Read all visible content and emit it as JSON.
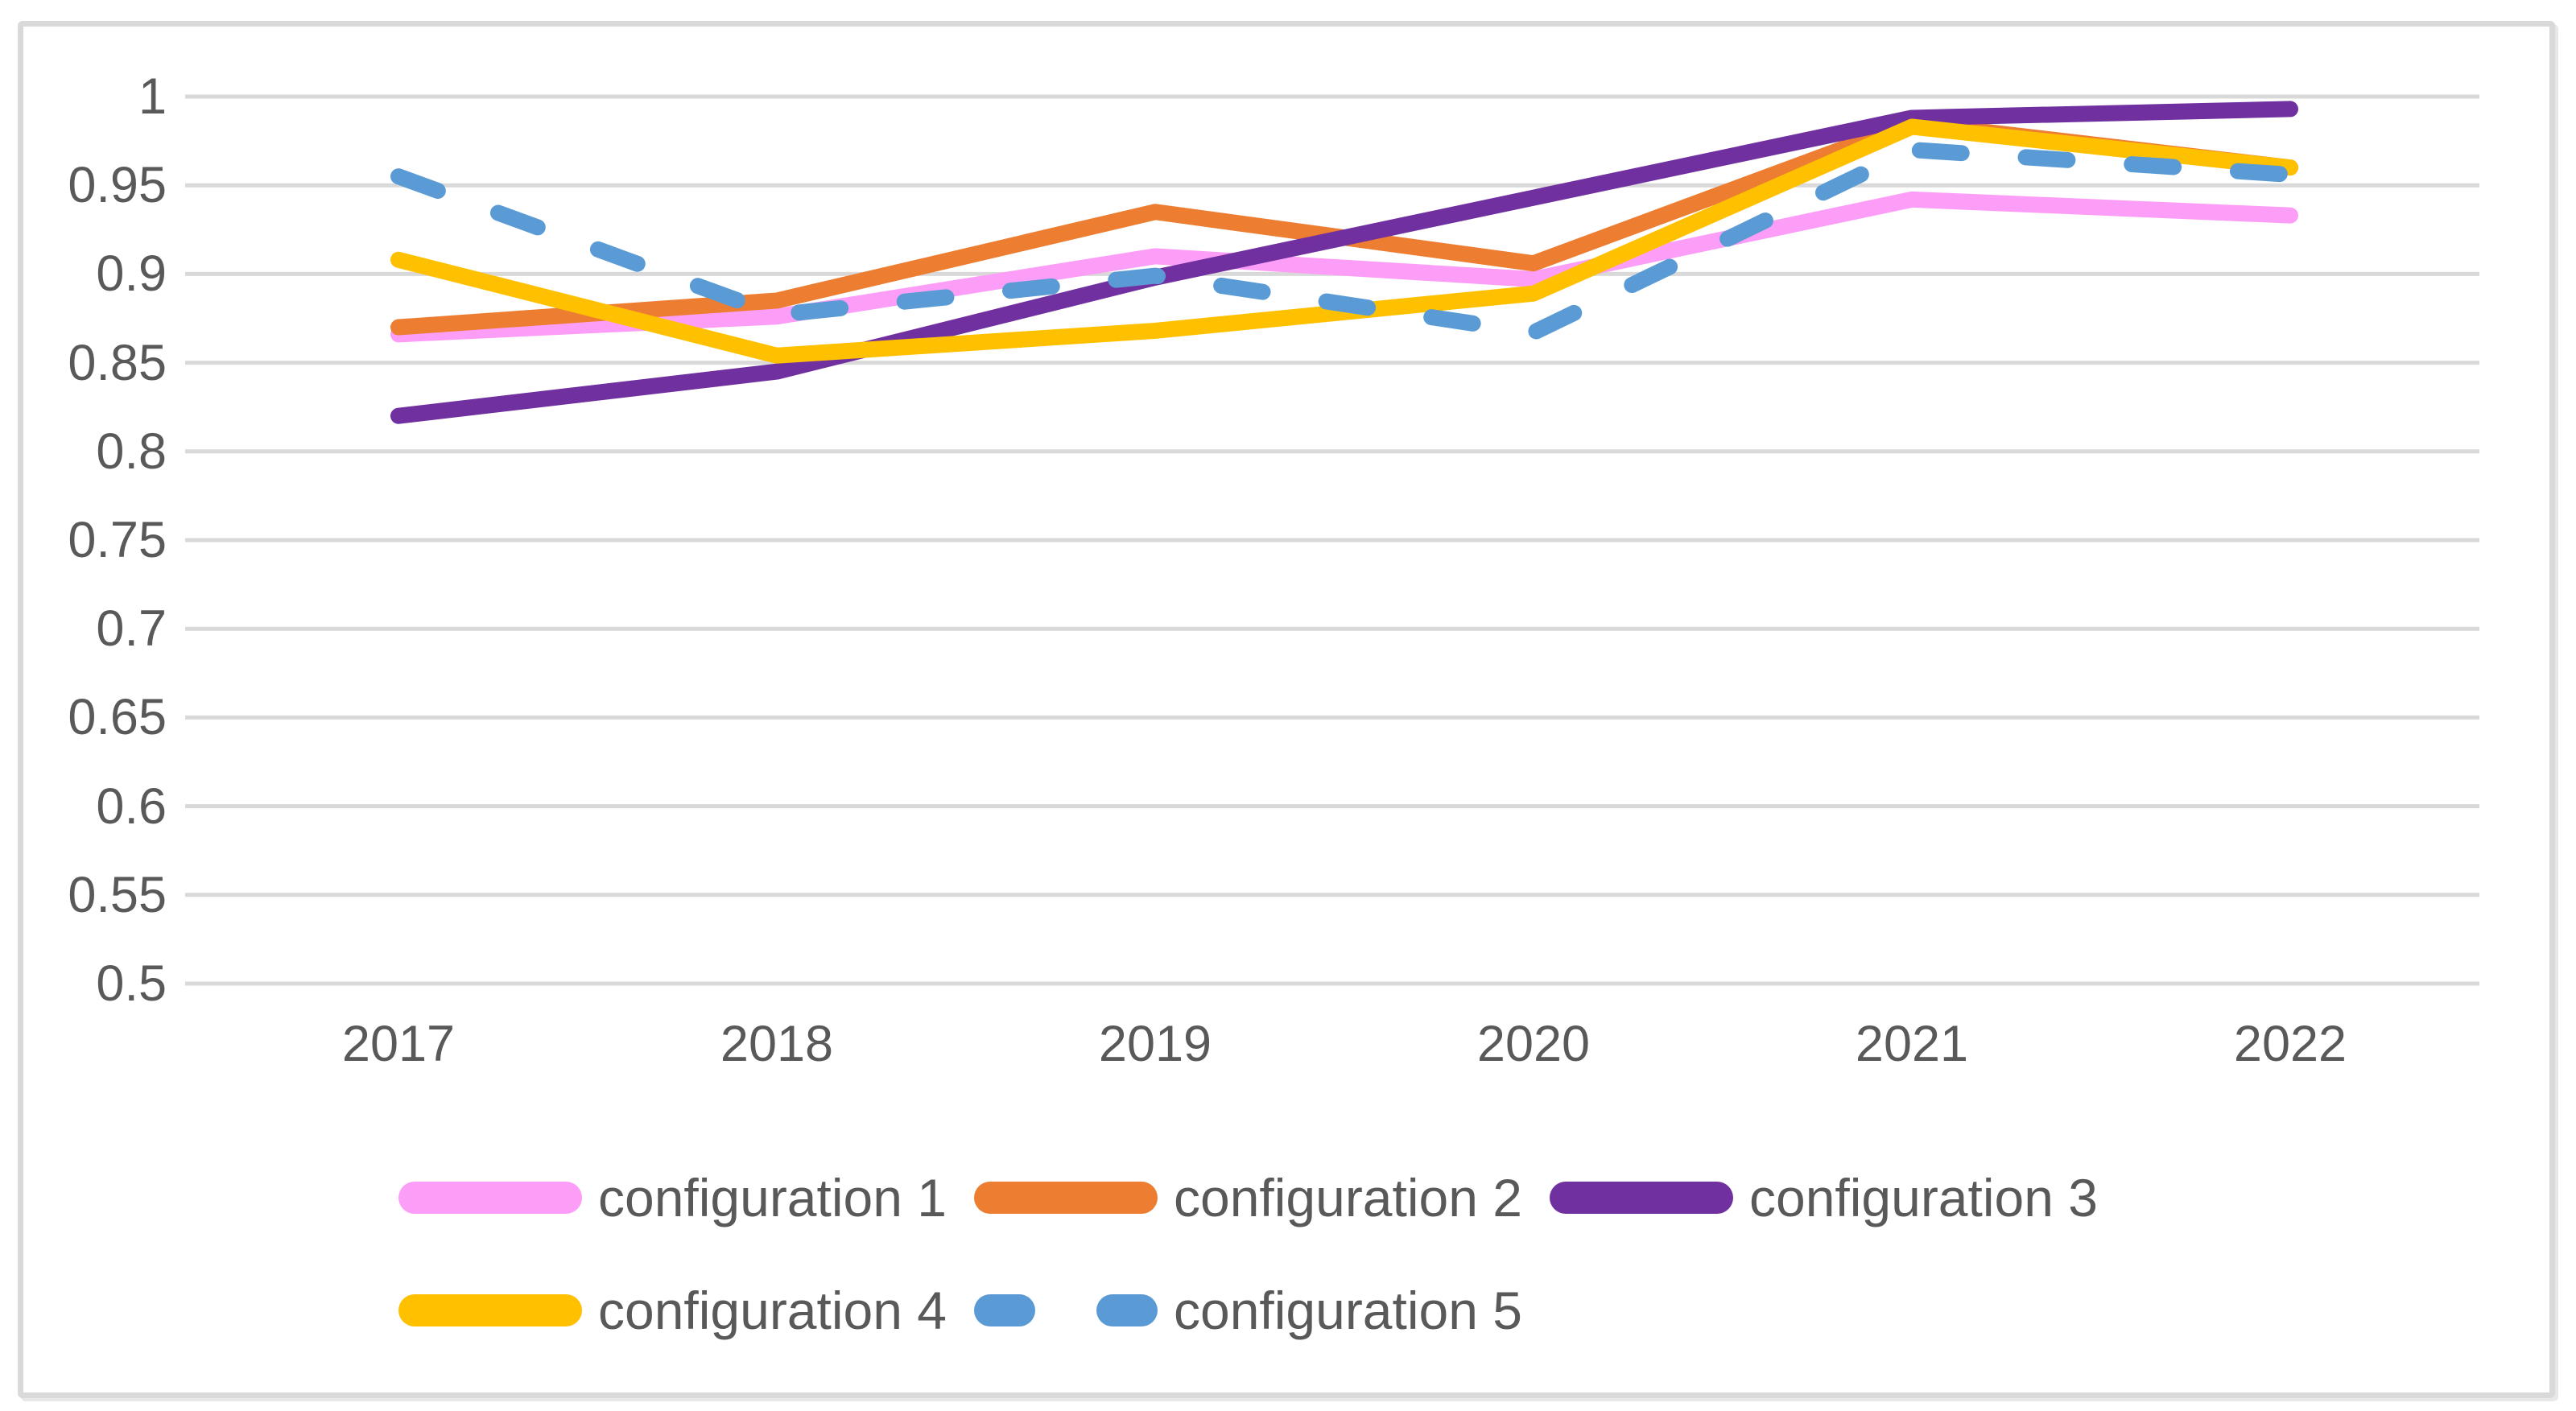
{
  "chart_data": {
    "type": "line",
    "title": "",
    "xlabel": "",
    "ylabel": "",
    "categories": [
      "2017",
      "2018",
      "2019",
      "2020",
      "2021",
      "2022"
    ],
    "series": [
      {
        "name": "configuration 1",
        "color": "#FC9EF7",
        "line_style": "solid",
        "values": [
          0.866,
          0.876,
          0.91,
          0.897,
          0.942,
          0.933
        ]
      },
      {
        "name": "configuration 2",
        "color": "#ED7D31",
        "line_style": "solid",
        "values": [
          0.87,
          0.885,
          0.935,
          0.906,
          0.985,
          0.96
        ]
      },
      {
        "name": "configuration 3",
        "color": "#7030A0",
        "line_style": "solid",
        "values": [
          0.82,
          0.845,
          0.898,
          0.943,
          0.988,
          0.993
        ]
      },
      {
        "name": "configuration 4",
        "color": "#FFC000",
        "line_style": "solid",
        "values": [
          0.908,
          0.854,
          0.868,
          0.889,
          0.983,
          0.96
        ]
      },
      {
        "name": "configuration 5",
        "color": "#5B9BD5",
        "line_style": "dashed",
        "values": [
          0.955,
          0.877,
          0.899,
          0.867,
          0.97,
          0.956
        ]
      }
    ],
    "ylim": [
      0.5,
      1.0
    ],
    "y_tick_labels": [
      "1",
      "0.95",
      "0.9",
      "0.85",
      "0.8",
      "0.75",
      "0.7",
      "0.65",
      "0.6",
      "0.55",
      "0.5"
    ],
    "y_tick_values": [
      1,
      0.95,
      0.9,
      0.85,
      0.8,
      0.75,
      0.7,
      0.65,
      0.6,
      0.55,
      0.5
    ],
    "grid": "horizontal",
    "legend_position": "bottom"
  },
  "colors": {
    "gridline": "#D9D9D9",
    "axis_text": "#595959",
    "frame_border": "#D9D9D9",
    "background": "#FFFFFF"
  }
}
